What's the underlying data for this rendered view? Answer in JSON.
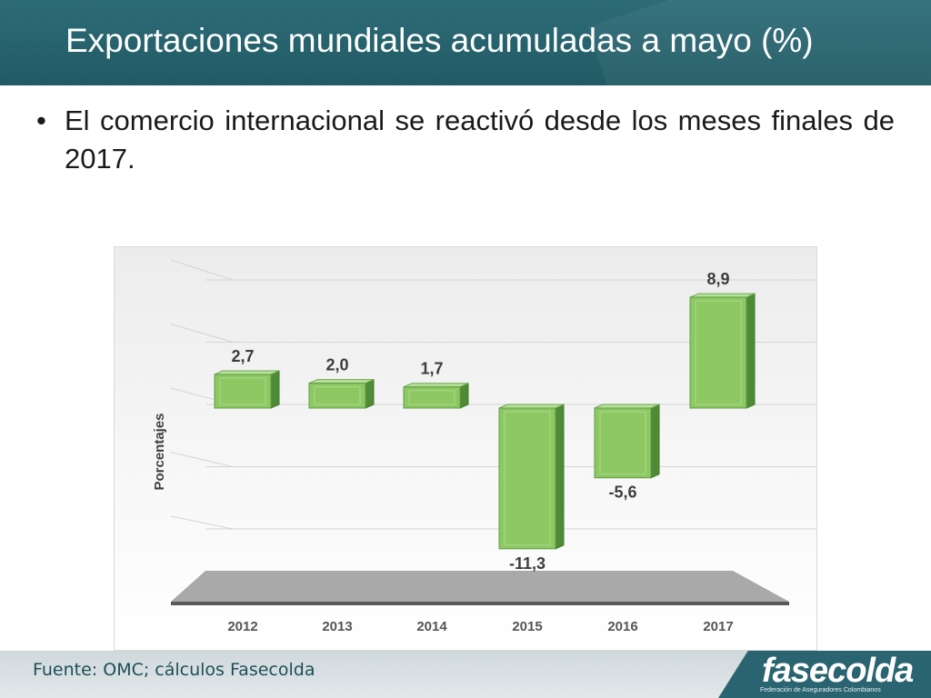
{
  "header": {
    "title": "Exportaciones mundiales acumuladas a mayo (%)"
  },
  "bullets": [
    {
      "marker": "•",
      "text": "El comercio internacional se reactivó desde los meses finales de 2017."
    }
  ],
  "chart_data": {
    "type": "bar",
    "style": "3d-floating-columns",
    "categories": [
      "2012",
      "2013",
      "2014",
      "2015",
      "2016",
      "2017"
    ],
    "values": [
      2.7,
      2.0,
      1.7,
      -11.3,
      -5.6,
      8.9
    ],
    "data_labels": [
      "2,7",
      "2,0",
      "1,7",
      "-11,3",
      "-5,6",
      "8,9"
    ],
    "title": "",
    "xlabel": "",
    "ylabel": "Porcentajes",
    "ylim": [
      -13,
      11
    ],
    "grid": true,
    "legend": "none",
    "bar_color": "#8dc863",
    "bar_side_color": "#4f8a37",
    "bar_top_color": "#b7e19a",
    "label_color": "#3d3d3d"
  },
  "footer": {
    "source": "Fuente: OMC; cálculos Fasecolda",
    "logo_text": "fasecolda",
    "logo_subtitle": "Federación de Aseguradores Colombianos"
  }
}
